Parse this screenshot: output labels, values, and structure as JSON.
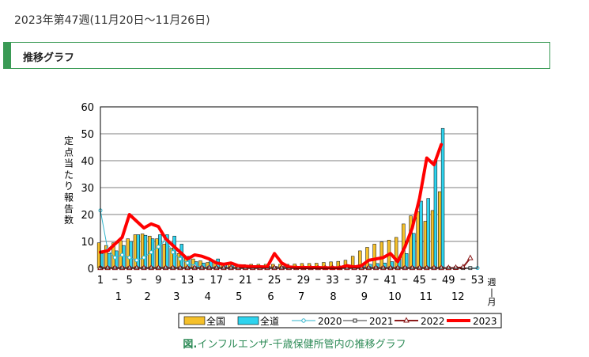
{
  "header": {
    "week_heading": "2023年第47週(11月20日～11月26日)",
    "section_title": "推移グラフ"
  },
  "caption": {
    "prefix": "図.",
    "text": "インフルエンザ-千歳保健所管内の推移グラフ"
  },
  "colors": {
    "accent_green": "#3a9a55",
    "bar_national": "#f5c02a",
    "bar_hokkaido": "#2ed3ee",
    "line_2020": "#31b4cc",
    "line_2021": "#333333",
    "line_2022": "#8b1a1a",
    "line_2023": "#ff0000"
  },
  "chart_data": {
    "type": "bar+line",
    "ylabel": "定点当たり報告数",
    "xlabel": "週|月",
    "ylim": [
      0,
      60
    ],
    "yticks": [
      0,
      10,
      20,
      30,
      40,
      50,
      60
    ],
    "xlim": [
      1,
      53
    ],
    "week_ticks": [
      "1",
      "5",
      "9",
      "13",
      "17",
      "21",
      "25",
      "29",
      "33",
      "37",
      "41",
      "45",
      "49",
      "53"
    ],
    "month_labels": [
      {
        "label": "1",
        "week": 3.5
      },
      {
        "label": "2",
        "week": 7.5
      },
      {
        "label": "3",
        "week": 11.5
      },
      {
        "label": "4",
        "week": 15.8
      },
      {
        "label": "5",
        "week": 20.1
      },
      {
        "label": "6",
        "week": 24.5
      },
      {
        "label": "7",
        "week": 28.7
      },
      {
        "label": "8",
        "week": 33.1
      },
      {
        "label": "9",
        "week": 37.4
      },
      {
        "label": "10",
        "week": 41.6
      },
      {
        "label": "11",
        "week": 45.9
      },
      {
        "label": "12",
        "week": 50.3
      }
    ],
    "bar_series": [
      {
        "name": "全国",
        "color": "#f5c02a",
        "values": [
          9.5,
          8.5,
          9.5,
          10.3,
          11.0,
          12.5,
          12.8,
          12.0,
          11.0,
          9.0,
          7.5,
          5.5,
          4.2,
          3.5,
          2.8,
          2.2,
          2.0,
          2.0,
          1.8,
          1.5,
          1.4,
          1.5,
          1.5,
          1.5,
          1.5,
          1.5,
          1.5,
          1.6,
          1.8,
          1.8,
          1.9,
          2.2,
          2.4,
          2.6,
          3.0,
          4.5,
          6.5,
          7.8,
          9.0,
          9.8,
          10.5,
          11.5,
          16.5,
          19.5,
          21.0,
          17.5,
          21.5,
          28.5
        ]
      },
      {
        "name": "全道",
        "color": "#2ed3ee",
        "values": [
          5.5,
          5.5,
          6.5,
          8.5,
          10.0,
          12.5,
          12.3,
          11.0,
          12.5,
          12.5,
          12.0,
          9.0,
          4.5,
          2.5,
          2.0,
          3.0,
          3.5,
          2.0,
          1.5,
          1.2,
          1.0,
          1.0,
          0.8,
          0.8,
          0.7,
          0.7,
          0.6,
          0.6,
          0.5,
          0.5,
          0.5,
          0.5,
          0.6,
          0.6,
          0.8,
          1.0,
          1.2,
          1.5,
          1.8,
          2.0,
          2.5,
          3.5,
          5.5,
          13.0,
          25.0,
          26.0,
          40.0,
          52.0
        ]
      }
    ],
    "series": [
      {
        "name": "2020",
        "color": "#31b4cc",
        "marker": "circle",
        "width": 1,
        "values": [
          21.5,
          7.0,
          4.0,
          5.0,
          4.0,
          3.0,
          4.0,
          6.0,
          8.0,
          10.5,
          6.0,
          3.5,
          2.0,
          1.0,
          0.5,
          0.5,
          0.3,
          0.2,
          0.1,
          0.1,
          0.1,
          0.1,
          0.1,
          0.1,
          0.1,
          0.1,
          0.1,
          0.1,
          0.1,
          0.1,
          0.1,
          0.1,
          0.1,
          0.1,
          0.1,
          0.1,
          0.1,
          0.1,
          0.1,
          0.1,
          0.1,
          0.1,
          0.1,
          0.1,
          0.1,
          0.1,
          0.1,
          0.1,
          0.1,
          0.1,
          0.1,
          0.1,
          0.1
        ]
      },
      {
        "name": "2021",
        "color": "#333333",
        "marker": "square",
        "width": 1,
        "values": [
          0.1,
          0.1,
          0.1,
          0.1,
          0.1,
          0.1,
          0.1,
          0.1,
          0.1,
          0.1,
          0.1,
          0.1,
          0.1,
          0.1,
          0.1,
          0.1,
          0.1,
          0.1,
          0.1,
          0.1,
          0.1,
          0.1,
          0.1,
          0.1,
          0.1,
          0.1,
          0.1,
          0.1,
          0.1,
          0.1,
          0.1,
          0.1,
          0.1,
          0.1,
          0.1,
          0.1,
          0.1,
          0.1,
          0.1,
          0.1,
          0.1,
          0.1,
          0.1,
          0.1,
          0.1,
          0.1,
          0.1,
          0.1,
          0.1,
          0.1,
          0.1,
          0.1
        ]
      },
      {
        "name": "2022",
        "color": "#8b1a1a",
        "marker": "triangle",
        "width": 2,
        "values": [
          0.1,
          0.1,
          0.1,
          0.1,
          0.1,
          0.1,
          0.1,
          0.1,
          0.1,
          0.1,
          0.1,
          0.1,
          0.1,
          0.1,
          0.1,
          0.1,
          0.1,
          0.1,
          0.1,
          0.1,
          0.1,
          0.1,
          0.1,
          0.1,
          0.1,
          0.1,
          0.1,
          0.1,
          0.1,
          0.1,
          0.1,
          0.1,
          0.1,
          0.1,
          0.1,
          0.1,
          0.1,
          0.1,
          0.1,
          0.1,
          0.1,
          0.1,
          0.1,
          0.1,
          0.1,
          0.1,
          0.1,
          0.1,
          0.1,
          0.2,
          0.4,
          3.8
        ]
      },
      {
        "name": "2023",
        "color": "#ff0000",
        "marker": "none",
        "width": 4,
        "values": [
          6.0,
          6.5,
          9.0,
          11.5,
          20.0,
          17.5,
          15.0,
          16.5,
          15.5,
          11.0,
          8.5,
          6.0,
          3.5,
          5.0,
          4.5,
          3.5,
          2.0,
          1.5,
          2.0,
          1.0,
          0.8,
          0.6,
          0.6,
          0.5,
          5.5,
          2.0,
          0.5,
          0.3,
          0.3,
          0.3,
          0.3,
          0.2,
          0.2,
          0.2,
          1.0,
          0.5,
          1.0,
          3.0,
          3.5,
          4.0,
          5.5,
          2.5,
          8.0,
          15.0,
          26.0,
          41.0,
          38.5,
          46.0
        ]
      }
    ],
    "legend": {
      "position": "bottom",
      "entries": [
        "全国",
        "全道",
        "2020",
        "2021",
        "2022",
        "2023"
      ]
    }
  }
}
